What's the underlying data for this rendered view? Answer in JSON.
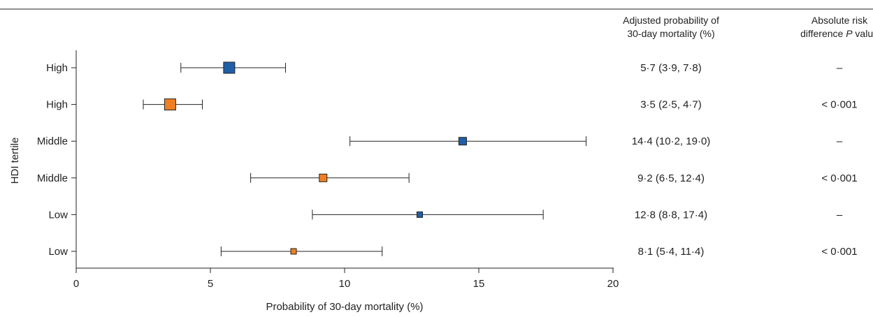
{
  "chart_data": {
    "type": "forest",
    "xlabel": "Probability of 30-day mortality (%)",
    "ylabel": "HDI tertile",
    "xlim": [
      0,
      20
    ],
    "xticks": [
      0,
      5,
      10,
      15,
      20
    ],
    "column_headers": {
      "estimate": [
        "Adjusted probability of",
        "30-day mortality (%)"
      ],
      "pvalue_line1": "Absolute risk",
      "pvalue_line2_prefix": "difference ",
      "pvalue_line2_italic": "P",
      "pvalue_line2_suffix": " value"
    },
    "rows": [
      {
        "label": "High",
        "value": 5.7,
        "lower": 3.9,
        "upper": 7.8,
        "color": "#1f5fa8",
        "size": 16,
        "estimate_text": "5·7 (3·9, 7·8)",
        "p_text": "–"
      },
      {
        "label": "High",
        "value": 3.5,
        "lower": 2.5,
        "upper": 4.7,
        "color": "#ef7f22",
        "size": 16,
        "estimate_text": "3·5 (2·5, 4·7)",
        "p_text": "< 0·001"
      },
      {
        "label": "Middle",
        "value": 14.4,
        "lower": 10.2,
        "upper": 19.0,
        "color": "#1f5fa8",
        "size": 11,
        "estimate_text": "14·4 (10·2, 19·0)",
        "p_text": "–"
      },
      {
        "label": "Middle",
        "value": 9.2,
        "lower": 6.5,
        "upper": 12.4,
        "color": "#ef7f22",
        "size": 11,
        "estimate_text": "9·2 (6·5, 12·4)",
        "p_text": "< 0·001"
      },
      {
        "label": "Low",
        "value": 12.8,
        "lower": 8.8,
        "upper": 17.4,
        "color": "#1f5fa8",
        "size": 8,
        "estimate_text": "12·8 (8·8, 17·4)",
        "p_text": "–"
      },
      {
        "label": "Low",
        "value": 8.1,
        "lower": 5.4,
        "upper": 11.4,
        "color": "#ef7f22",
        "size": 8,
        "estimate_text": "8·1 (5·4, 11·4)",
        "p_text": "< 0·001"
      }
    ]
  }
}
